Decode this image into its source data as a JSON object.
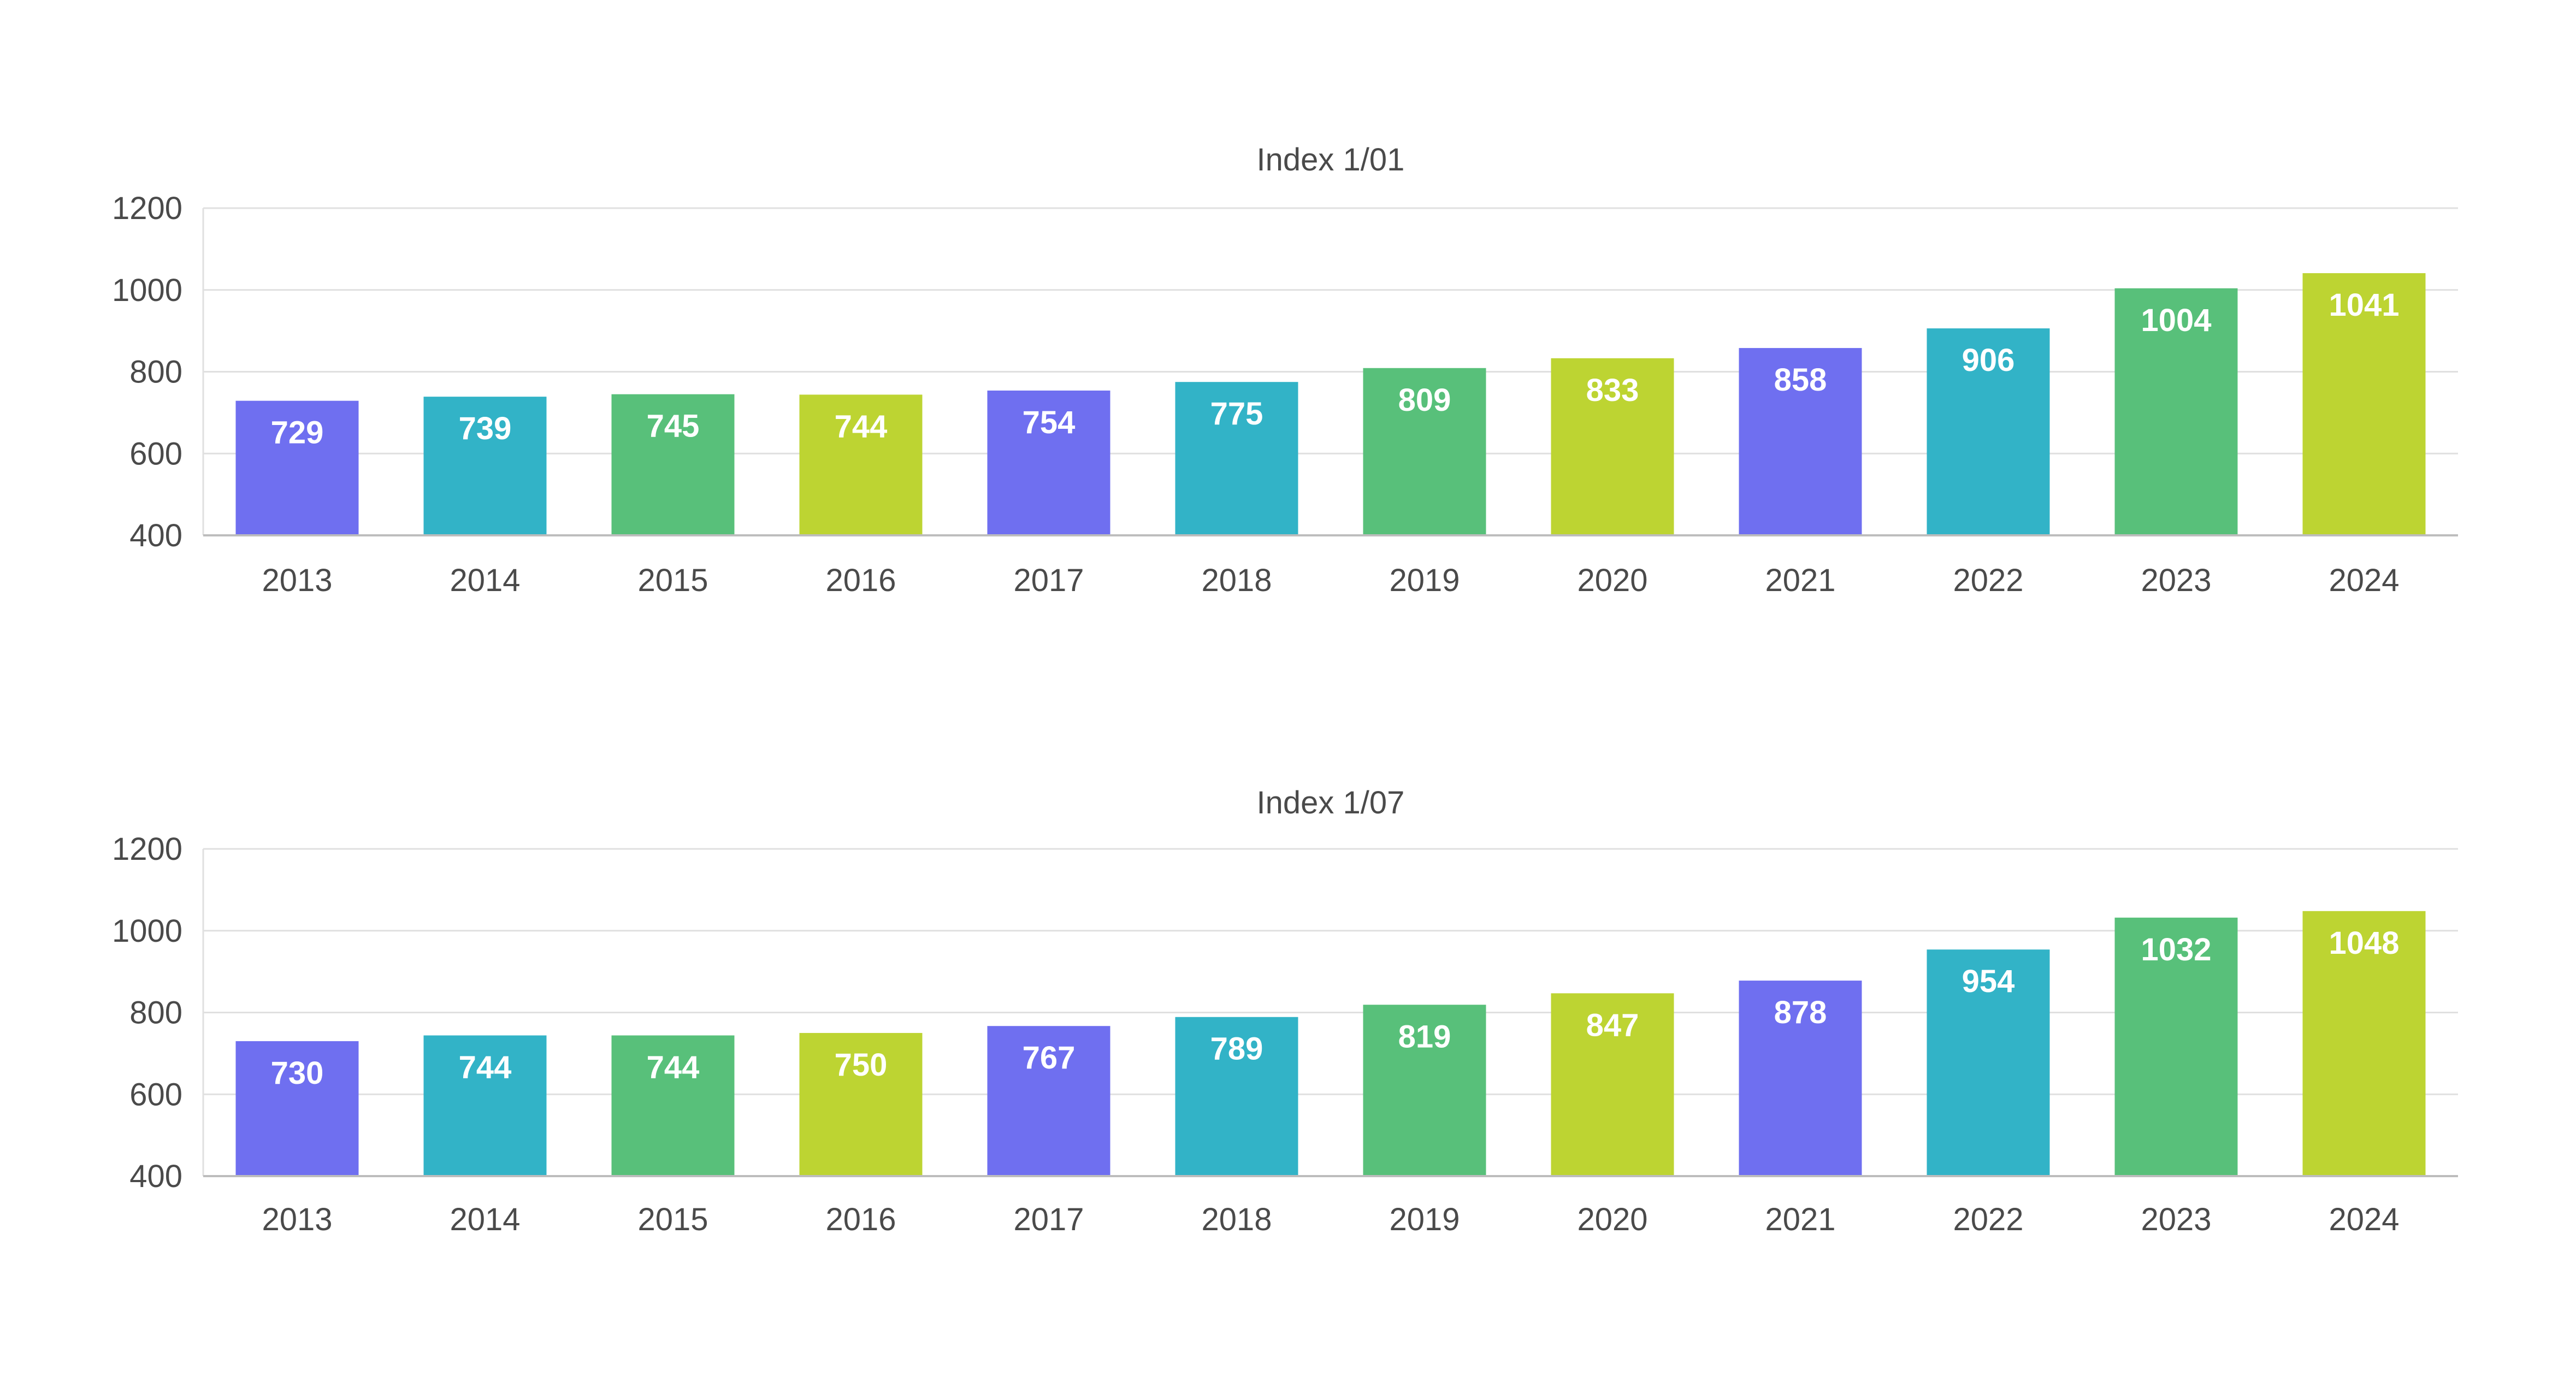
{
  "colors": {
    "palette": [
      "#6f6ff0",
      "#32b3c7",
      "#58c07a",
      "#bdd432"
    ],
    "text": "#4a4a4a",
    "grid": "#e0e0e0",
    "axis": "#bdbdbd",
    "bar_label": "#ffffff"
  },
  "chart_data": [
    {
      "type": "bar",
      "title": "Index 1/01",
      "categories": [
        "2013",
        "2014",
        "2015",
        "2016",
        "2017",
        "2018",
        "2019",
        "2020",
        "2021",
        "2022",
        "2023",
        "2024"
      ],
      "values": [
        729,
        739,
        745,
        744,
        754,
        775,
        809,
        833,
        858,
        906,
        1004,
        1041
      ],
      "data_labels": [
        "729",
        "739",
        "745",
        "744",
        "754",
        "775",
        "809",
        "833",
        "858",
        "906",
        "1004",
        "1041"
      ],
      "xlabel": "",
      "ylabel": "",
      "ylim": [
        400,
        1200
      ],
      "yticks": [
        400,
        600,
        800,
        1000,
        1200
      ],
      "ytick_labels": [
        "400",
        "600",
        "800",
        "1000",
        "1200"
      ],
      "grid": true,
      "legend": "none"
    },
    {
      "type": "bar",
      "title": "Index 1/07",
      "categories": [
        "2013",
        "2014",
        "2015",
        "2016",
        "2017",
        "2018",
        "2019",
        "2020",
        "2021",
        "2022",
        "2023",
        "2024"
      ],
      "values": [
        730,
        744,
        744,
        750,
        767,
        789,
        819,
        847,
        878,
        954,
        1032,
        1048
      ],
      "data_labels": [
        "730",
        "744",
        "744",
        "750",
        "767",
        "789",
        "819",
        "847",
        "878",
        "954",
        "1032",
        "1048"
      ],
      "xlabel": "",
      "ylabel": "",
      "ylim": [
        400,
        1200
      ],
      "yticks": [
        400,
        600,
        800,
        1000,
        1200
      ],
      "ytick_labels": [
        "400",
        "600",
        "800",
        "1000",
        "1200"
      ],
      "grid": true,
      "legend": "none"
    }
  ]
}
